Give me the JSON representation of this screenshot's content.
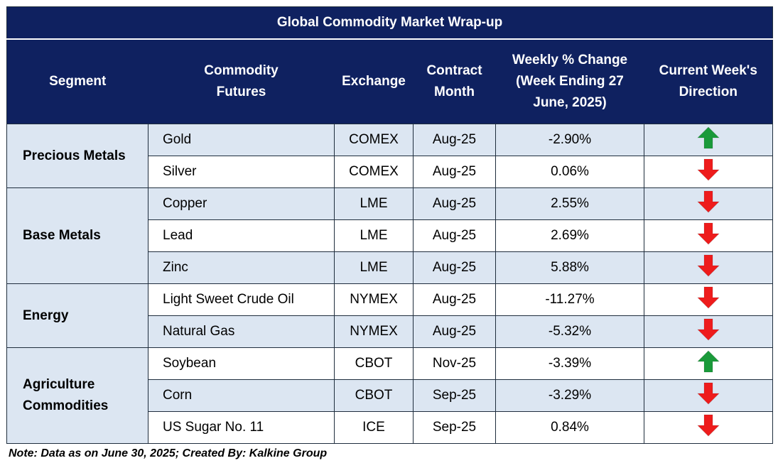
{
  "title": "Global Commodity Market Wrap-up",
  "headers": {
    "segment": "Segment",
    "commodity_line1": "Commodity",
    "commodity_line2": "Futures",
    "exchange": "Exchange",
    "contract_line1": "Contract",
    "contract_line2": "Month",
    "weekly_line1": "Weekly % Change",
    "weekly_line2": "(Week Ending  27",
    "weekly_line3": "June, 2025)",
    "direction_line1": "Current Week's",
    "direction_line2": "Direction"
  },
  "segments": [
    {
      "line1": "Precious Metals",
      "line2": ""
    },
    {
      "line1": "Base Metals",
      "line2": ""
    },
    {
      "line1": "Energy",
      "line2": ""
    },
    {
      "line1": "Agriculture",
      "line2": "Commodities"
    }
  ],
  "rows": [
    {
      "commodity": "Gold",
      "exchange": "COMEX",
      "month": "Aug-25",
      "change": "-2.90%",
      "direction": "up"
    },
    {
      "commodity": "Silver",
      "exchange": "COMEX",
      "month": "Aug-25",
      "change": "0.06%",
      "direction": "down"
    },
    {
      "commodity": "Copper",
      "exchange": "LME",
      "month": "Aug-25",
      "change": "2.55%",
      "direction": "down"
    },
    {
      "commodity": "Lead",
      "exchange": "LME",
      "month": "Aug-25",
      "change": "2.69%",
      "direction": "down"
    },
    {
      "commodity": "Zinc",
      "exchange": "LME",
      "month": "Aug-25",
      "change": "5.88%",
      "direction": "down"
    },
    {
      "commodity": "Light Sweet Crude Oil",
      "exchange": "NYMEX",
      "month": "Aug-25",
      "change": "-11.27%",
      "direction": "down"
    },
    {
      "commodity": "Natural Gas",
      "exchange": "NYMEX",
      "month": "Aug-25",
      "change": "-5.32%",
      "direction": "down"
    },
    {
      "commodity": "Soybean",
      "exchange": "CBOT",
      "month": "Nov-25",
      "change": "-3.39%",
      "direction": "up"
    },
    {
      "commodity": "Corn",
      "exchange": "CBOT",
      "month": "Sep-25",
      "change": "-3.29%",
      "direction": "down"
    },
    {
      "commodity": "US Sugar No. 11",
      "exchange": "ICE",
      "month": "Sep-25",
      "change": "0.84%",
      "direction": "down"
    }
  ],
  "colors": {
    "header_bg": "#0f2160",
    "shade_bg": "#dce6f2",
    "up_arrow": "#1a9a3a",
    "down_arrow": "#ee1c1c"
  },
  "note": "Note: Data as on June 30, 2025; Created By: Kalkine Group"
}
